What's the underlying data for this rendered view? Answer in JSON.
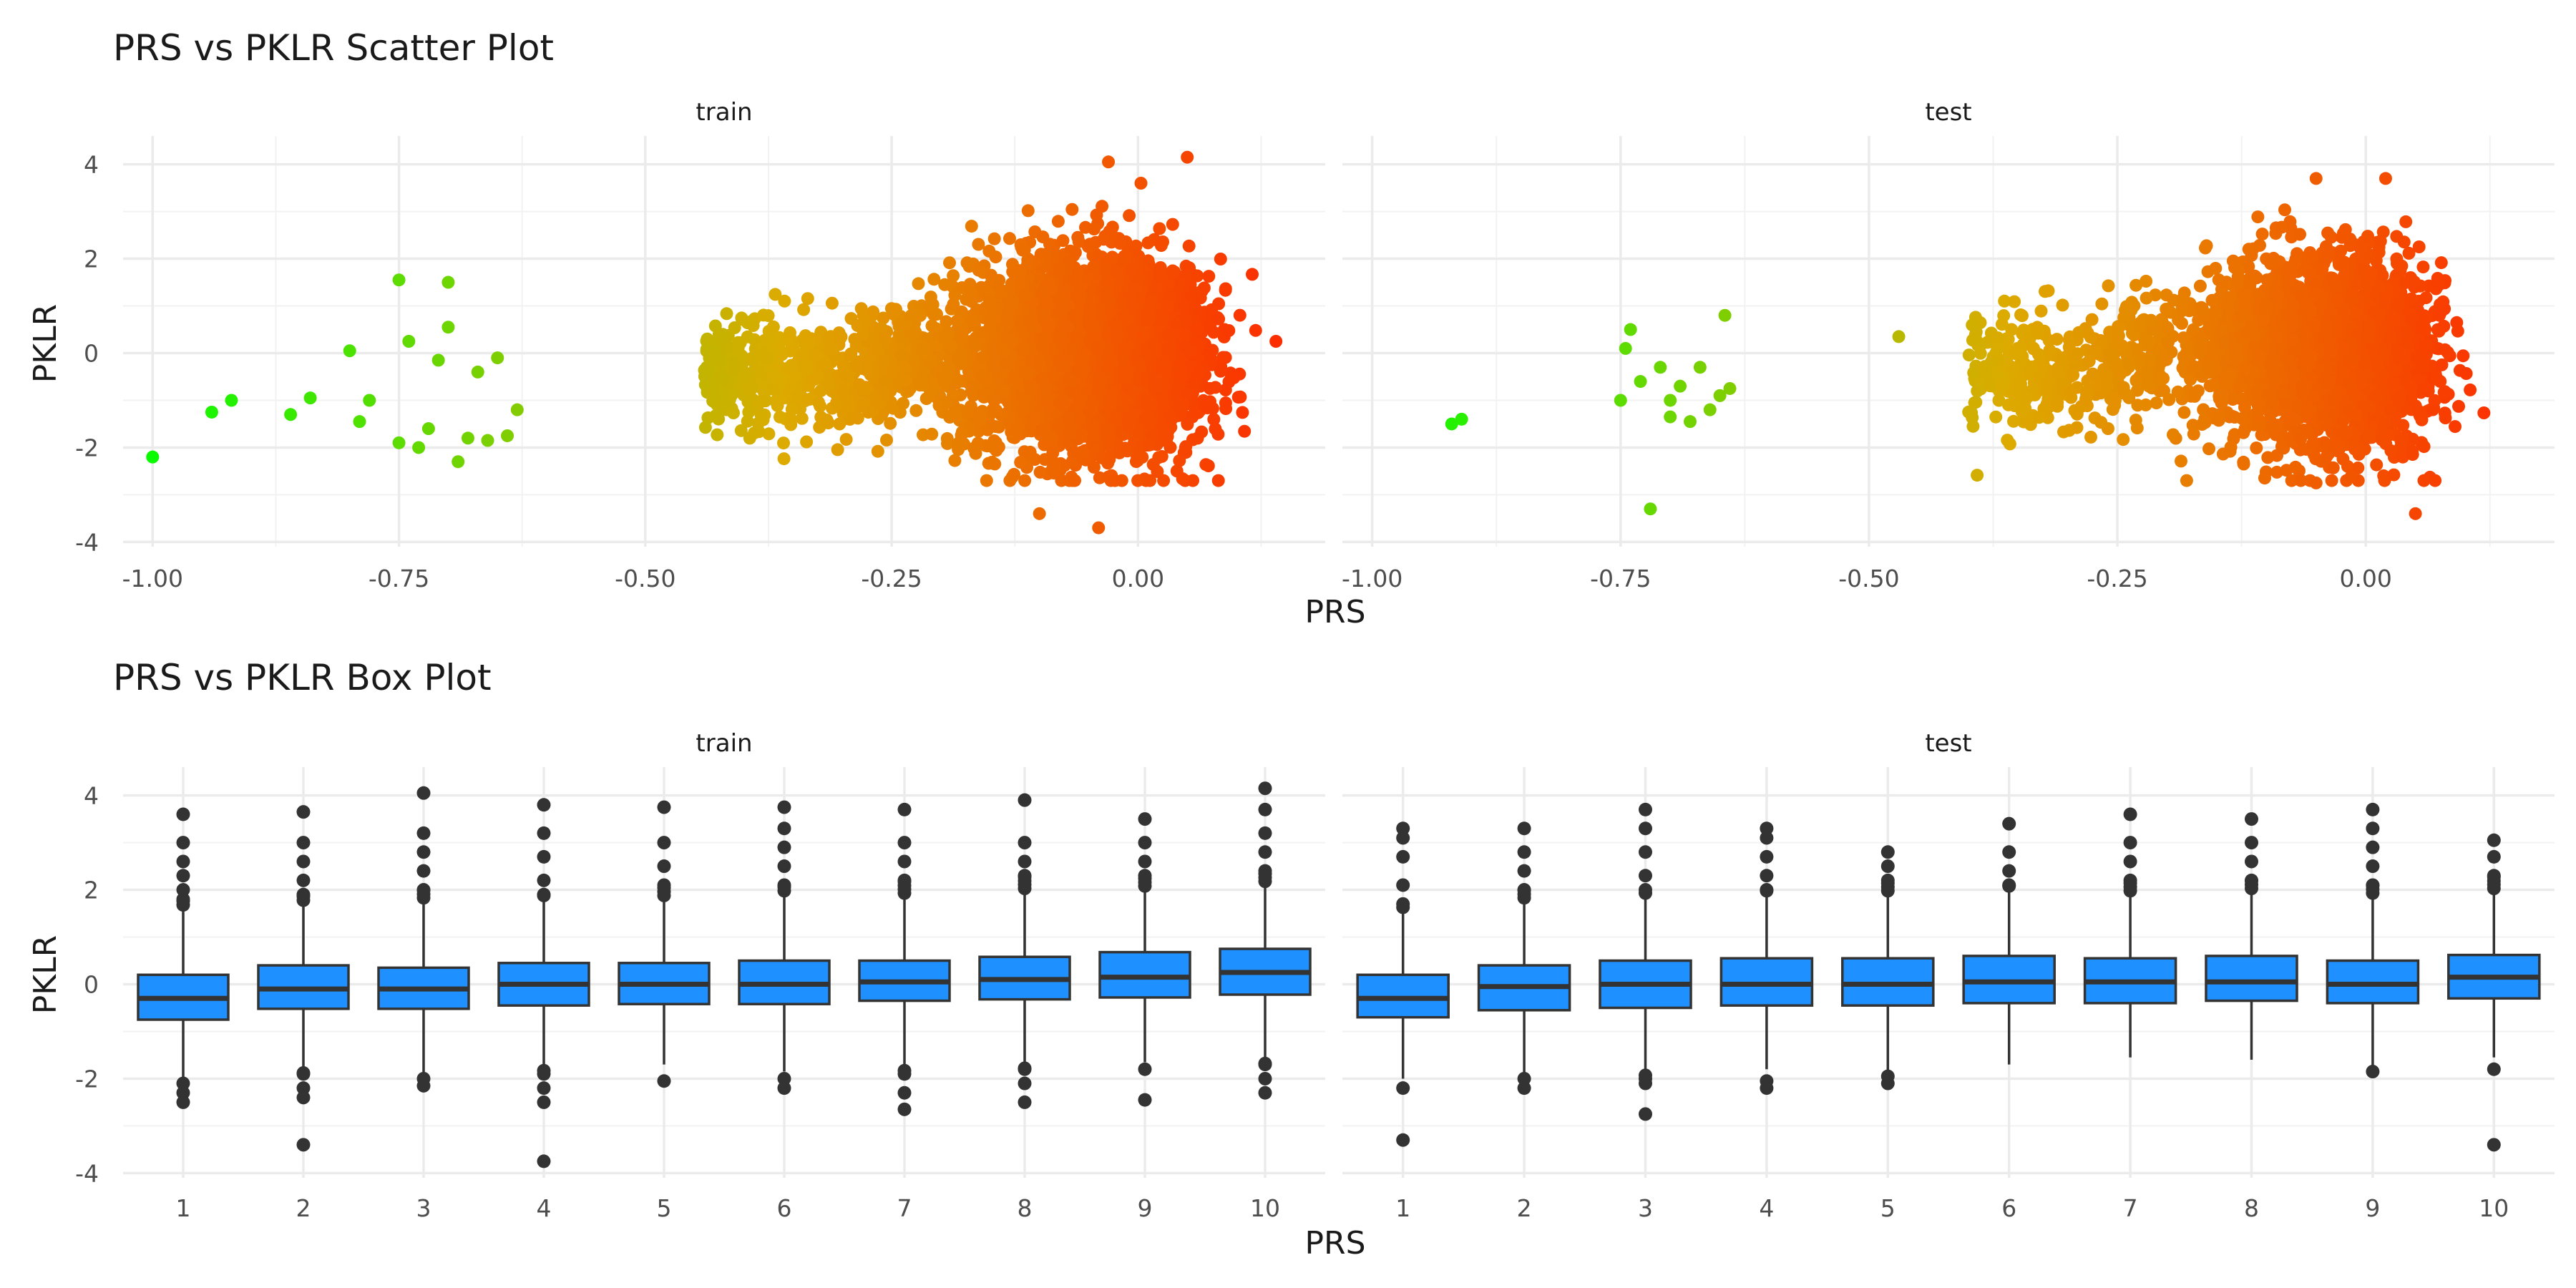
{
  "chart_data": [
    {
      "type": "scatter",
      "title": "PRS vs PKLR Scatter Plot",
      "xlabel": "PRS",
      "ylabel": "PKLR",
      "facets": [
        "train",
        "test"
      ],
      "x_ticks": [
        "-1.00",
        "-0.75",
        "-0.50",
        "-0.25",
        "0.00"
      ],
      "y_ticks": [
        "-4",
        "-2",
        "0",
        "2",
        "4"
      ],
      "xlim": [
        -1.03,
        0.19
      ],
      "ylim": [
        -4.1,
        4.6
      ],
      "grid": true,
      "color_gradient": {
        "low": "#00FF00",
        "mid": "#DDAA00",
        "high": "#FF2200"
      },
      "panels": [
        {
          "name": "train",
          "outliers": [
            {
              "x": -1.0,
              "y": -2.2
            },
            {
              "x": -0.94,
              "y": -1.25
            },
            {
              "x": -0.92,
              "y": -1.0
            },
            {
              "x": -0.86,
              "y": -1.3
            },
            {
              "x": -0.84,
              "y": -0.95
            },
            {
              "x": -0.8,
              "y": 0.05
            },
            {
              "x": -0.79,
              "y": -1.45
            },
            {
              "x": -0.78,
              "y": -1.0
            },
            {
              "x": -0.75,
              "y": 1.55
            },
            {
              "x": -0.7,
              "y": 1.5
            },
            {
              "x": -0.74,
              "y": 0.25
            },
            {
              "x": -0.7,
              "y": 0.55
            },
            {
              "x": -0.69,
              "y": -2.3
            },
            {
              "x": -0.68,
              "y": -1.8
            },
            {
              "x": -0.66,
              "y": -1.85
            },
            {
              "x": -0.64,
              "y": -1.75
            },
            {
              "x": -0.63,
              "y": -1.2
            },
            {
              "x": -0.65,
              "y": -0.1
            },
            {
              "x": -0.73,
              "y": -2.0
            },
            {
              "x": -0.75,
              "y": -1.9
            },
            {
              "x": -0.72,
              "y": -1.6
            },
            {
              "x": -0.67,
              "y": -0.4
            },
            {
              "x": -0.71,
              "y": -0.15
            },
            {
              "x": -0.1,
              "y": -3.4
            },
            {
              "x": -0.04,
              "y": -3.7
            },
            {
              "x": 0.05,
              "y": 4.15
            },
            {
              "x": -0.03,
              "y": 4.05
            },
            {
              "x": 0.14,
              "y": 0.25
            }
          ]
        },
        {
          "name": "test",
          "outliers": [
            {
              "x": -0.92,
              "y": -1.5
            },
            {
              "x": -0.91,
              "y": -1.4
            },
            {
              "x": -0.74,
              "y": 0.5
            },
            {
              "x": -0.745,
              "y": 0.1
            },
            {
              "x": -0.73,
              "y": -0.6
            },
            {
              "x": -0.72,
              "y": -3.3
            },
            {
              "x": -0.71,
              "y": -0.3
            },
            {
              "x": -0.7,
              "y": -1.0
            },
            {
              "x": -0.69,
              "y": -0.7
            },
            {
              "x": -0.68,
              "y": -1.45
            },
            {
              "x": -0.67,
              "y": -0.3
            },
            {
              "x": -0.66,
              "y": -1.2
            },
            {
              "x": -0.65,
              "y": -0.9
            },
            {
              "x": -0.64,
              "y": -0.75
            },
            {
              "x": -0.645,
              "y": 0.8
            },
            {
              "x": -0.7,
              "y": -1.35
            },
            {
              "x": -0.75,
              "y": -1.0
            },
            {
              "x": -0.47,
              "y": 0.35
            },
            {
              "x": -0.05,
              "y": -2.75
            },
            {
              "x": 0.05,
              "y": -3.4
            },
            {
              "x": -0.05,
              "y": 3.7
            },
            {
              "x": 0.02,
              "y": 3.7
            }
          ]
        }
      ]
    },
    {
      "type": "box",
      "title": "PRS vs PKLR Box Plot",
      "xlabel": "PRS",
      "ylabel": "PKLR",
      "facets": [
        "train",
        "test"
      ],
      "categories": [
        "1",
        "2",
        "3",
        "4",
        "5",
        "6",
        "7",
        "8",
        "9",
        "10"
      ],
      "y_ticks": [
        "-4",
        "-2",
        "0",
        "2",
        "4"
      ],
      "ylim": [
        -4.1,
        4.6
      ],
      "grid": true,
      "box_color": "#1E90FF",
      "panels": [
        {
          "name": "train",
          "boxes": [
            {
              "q1": -0.75,
              "median": -0.3,
              "q3": 0.2,
              "whisker_low": -2.05,
              "whisker_high": 1.6,
              "outliers": [
                3.6,
                3.0,
                2.6,
                2.3,
                2.0,
                1.8,
                -2.1,
                -2.3,
                -2.5
              ]
            },
            {
              "q1": -0.52,
              "median": -0.1,
              "q3": 0.4,
              "whisker_low": -1.8,
              "whisker_high": 1.7,
              "outliers": [
                3.65,
                3.0,
                2.6,
                2.2,
                1.9,
                -1.9,
                -2.2,
                -2.4,
                -3.4
              ]
            },
            {
              "q1": -0.52,
              "median": -0.1,
              "q3": 0.35,
              "whisker_low": -1.9,
              "whisker_high": 1.75,
              "outliers": [
                4.05,
                3.2,
                2.8,
                2.4,
                2.0,
                -2.0,
                -2.15
              ]
            },
            {
              "q1": -0.45,
              "median": 0.0,
              "q3": 0.45,
              "whisker_low": -1.75,
              "whisker_high": 1.8,
              "outliers": [
                3.8,
                3.2,
                2.7,
                2.2,
                1.9,
                -1.9,
                -2.2,
                -2.5,
                -3.75
              ]
            },
            {
              "q1": -0.42,
              "median": 0.0,
              "q3": 0.45,
              "whisker_low": -1.7,
              "whisker_high": 1.8,
              "outliers": [
                3.75,
                3.0,
                2.5,
                2.1,
                -2.05
              ]
            },
            {
              "q1": -0.42,
              "median": 0.0,
              "q3": 0.5,
              "whisker_low": -1.85,
              "whisker_high": 1.9,
              "outliers": [
                3.75,
                3.3,
                2.9,
                2.5,
                2.1,
                -2.0,
                -2.2
              ]
            },
            {
              "q1": -0.35,
              "median": 0.05,
              "q3": 0.5,
              "whisker_low": -1.75,
              "whisker_high": 1.85,
              "outliers": [
                3.7,
                3.0,
                2.6,
                2.2,
                -1.9,
                -2.3,
                -2.65
              ]
            },
            {
              "q1": -0.32,
              "median": 0.1,
              "q3": 0.58,
              "whisker_low": -1.7,
              "whisker_high": 1.95,
              "outliers": [
                3.9,
                3.0,
                2.6,
                2.3,
                -1.8,
                -2.1,
                -2.5
              ]
            },
            {
              "q1": -0.28,
              "median": 0.15,
              "q3": 0.68,
              "whisker_low": -1.65,
              "whisker_high": 2.0,
              "outliers": [
                3.5,
                3.0,
                2.6,
                2.3,
                -1.8,
                -2.45
              ]
            },
            {
              "q1": -0.22,
              "median": 0.25,
              "q3": 0.75,
              "whisker_low": -1.6,
              "whisker_high": 2.1,
              "outliers": [
                4.15,
                3.7,
                3.2,
                2.8,
                2.4,
                -1.7,
                -2.0,
                -2.3
              ]
            }
          ]
        },
        {
          "name": "test",
          "boxes": [
            {
              "q1": -0.7,
              "median": -0.3,
              "q3": 0.2,
              "whisker_low": -2.0,
              "whisker_high": 1.55,
              "outliers": [
                3.3,
                3.1,
                2.7,
                2.1,
                1.7,
                -2.2,
                -3.3
              ]
            },
            {
              "q1": -0.55,
              "median": -0.05,
              "q3": 0.4,
              "whisker_low": -1.9,
              "whisker_high": 1.75,
              "outliers": [
                3.3,
                2.8,
                2.4,
                2.0,
                -2.0,
                -2.2
              ]
            },
            {
              "q1": -0.5,
              "median": 0.0,
              "q3": 0.5,
              "whisker_low": -1.85,
              "whisker_high": 1.85,
              "outliers": [
                3.7,
                3.3,
                2.8,
                2.3,
                2.0,
                -2.0,
                -2.1,
                -2.75
              ]
            },
            {
              "q1": -0.45,
              "median": 0.0,
              "q3": 0.55,
              "whisker_low": -1.8,
              "whisker_high": 1.9,
              "outliers": [
                3.3,
                3.1,
                2.7,
                2.3,
                2.0,
                -2.05,
                -2.2
              ]
            },
            {
              "q1": -0.45,
              "median": 0.0,
              "q3": 0.55,
              "whisker_low": -1.85,
              "whisker_high": 1.9,
              "outliers": [
                2.8,
                2.5,
                2.2,
                -1.95,
                -2.1
              ]
            },
            {
              "q1": -0.4,
              "median": 0.05,
              "q3": 0.6,
              "whisker_low": -1.7,
              "whisker_high": 2.0,
              "outliers": [
                3.4,
                2.8,
                2.4,
                2.1
              ]
            },
            {
              "q1": -0.4,
              "median": 0.05,
              "q3": 0.55,
              "whisker_low": -1.55,
              "whisker_high": 1.9,
              "outliers": [
                3.6,
                3.0,
                2.6,
                2.2
              ]
            },
            {
              "q1": -0.35,
              "median": 0.05,
              "q3": 0.6,
              "whisker_low": -1.6,
              "whisker_high": 1.95,
              "outliers": [
                3.5,
                3.0,
                2.6,
                2.2
              ]
            },
            {
              "q1": -0.4,
              "median": 0.0,
              "q3": 0.5,
              "whisker_low": -1.75,
              "whisker_high": 1.85,
              "outliers": [
                3.7,
                3.3,
                2.9,
                2.5,
                2.1,
                -1.85
              ]
            },
            {
              "q1": -0.3,
              "median": 0.15,
              "q3": 0.62,
              "whisker_low": -1.55,
              "whisker_high": 1.95,
              "outliers": [
                3.05,
                2.7,
                2.3,
                -1.8,
                -3.4
              ]
            }
          ]
        }
      ]
    }
  ]
}
